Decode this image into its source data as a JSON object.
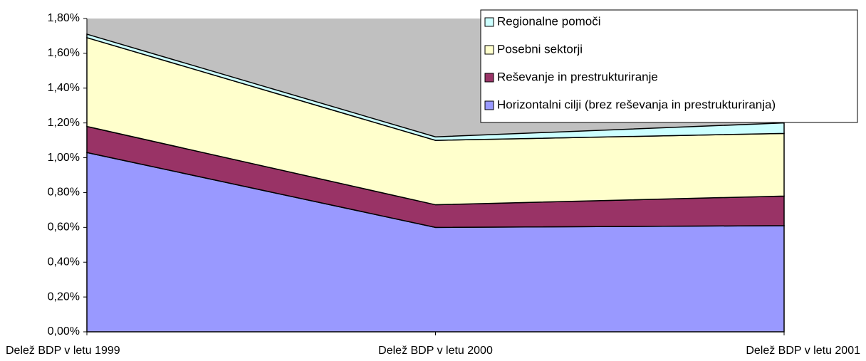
{
  "chart_data": {
    "type": "stacked_area",
    "categories": [
      "Delež BDP v letu 1999",
      "Delež BDP v letu 2000",
      "Delež BDP v letu 2001"
    ],
    "series": [
      {
        "name": "Horizontalni cilji (brez reševanja in prestrukturiranja)",
        "color": "#9999ff",
        "values": [
          1.03,
          0.6,
          0.61
        ]
      },
      {
        "name": "Reševanje in prestrukturiranje",
        "color": "#993366",
        "values": [
          0.15,
          0.13,
          0.17
        ]
      },
      {
        "name": "Posebni sektorji",
        "color": "#ffffcc",
        "values": [
          0.51,
          0.37,
          0.36
        ]
      },
      {
        "name": "Regionalne pomoči",
        "color": "#ccffff",
        "values": [
          0.02,
          0.02,
          0.06
        ]
      }
    ],
    "ylim": [
      0,
      1.8
    ],
    "yticks": [
      {
        "value": 0,
        "label": "0,00%"
      },
      {
        "value": 0.2,
        "label": "0,20%"
      },
      {
        "value": 0.4,
        "label": "0,40%"
      },
      {
        "value": 0.6,
        "label": "0,60%"
      },
      {
        "value": 0.8,
        "label": "0,80%"
      },
      {
        "value": 1.0,
        "label": "1,00%"
      },
      {
        "value": 1.2,
        "label": "1,20%"
      },
      {
        "value": 1.4,
        "label": "1,40%"
      },
      {
        "value": 1.6,
        "label": "1,60%"
      },
      {
        "value": 1.8,
        "label": "1,80%"
      }
    ],
    "plot_background": "#c0c0c0",
    "legend": "top-right"
  }
}
